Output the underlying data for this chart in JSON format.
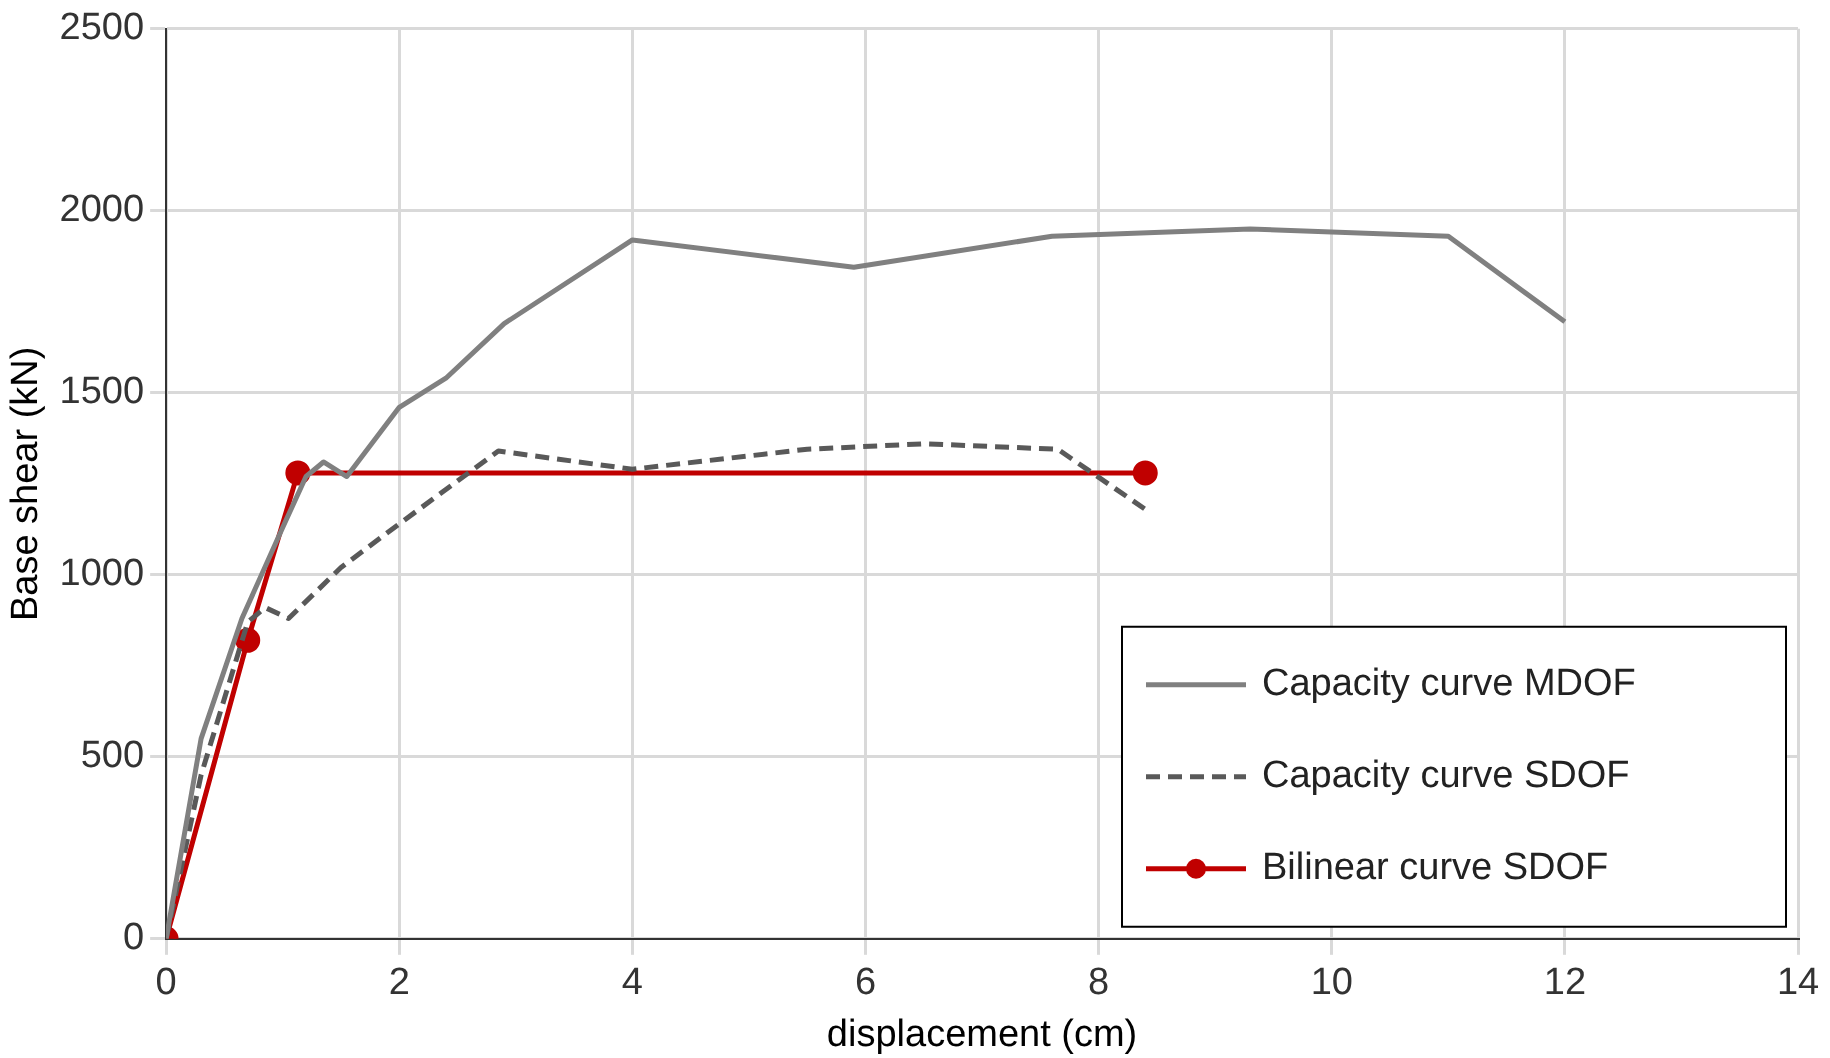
{
  "chart_data": {
    "type": "line",
    "xlabel": "displacement (cm)",
    "ylabel": "Base shear (kN)",
    "xlim": [
      0,
      14
    ],
    "xticks": [
      0,
      2,
      4,
      6,
      8,
      10,
      12,
      14
    ],
    "ylim": [
      0,
      2500
    ],
    "yticks": [
      0,
      500,
      1000,
      1500,
      2000,
      2500
    ],
    "grid": true,
    "legend": "bottom right",
    "series": [
      {
        "name": "Capacity curve MDOF",
        "color": "#808080",
        "line_style": "solid",
        "marker": "none",
        "x": [
          0,
          0.3,
          0.65,
          1.0,
          1.2,
          1.35,
          1.55,
          2,
          2.4,
          2.9,
          4,
          5.9,
          7.6,
          9.3,
          11,
          12
        ],
        "values": [
          0,
          550,
          880,
          1130,
          1270,
          1310,
          1270,
          1460,
          1540,
          1690,
          1920,
          1845,
          1930,
          1950,
          1930,
          1695
        ]
      },
      {
        "name": "Capacity curve SDOF",
        "color": "#595959",
        "line_style": "dashed",
        "marker": "none",
        "x": [
          0,
          0.3,
          0.7,
          0.85,
          1.05,
          1.5,
          2,
          2.85,
          4,
          5.5,
          6.5,
          7.65,
          8.4
        ],
        "values": [
          0,
          450,
          870,
          910,
          880,
          1020,
          1140,
          1340,
          1290,
          1345,
          1360,
          1345,
          1180
        ]
      },
      {
        "name": "Bilinear curve SDOF",
        "color": "#c00000",
        "line_style": "solid",
        "marker": "circle",
        "x": [
          0,
          0.7,
          1.13,
          8.4
        ],
        "values": [
          0,
          820,
          1280,
          1280
        ]
      }
    ]
  }
}
